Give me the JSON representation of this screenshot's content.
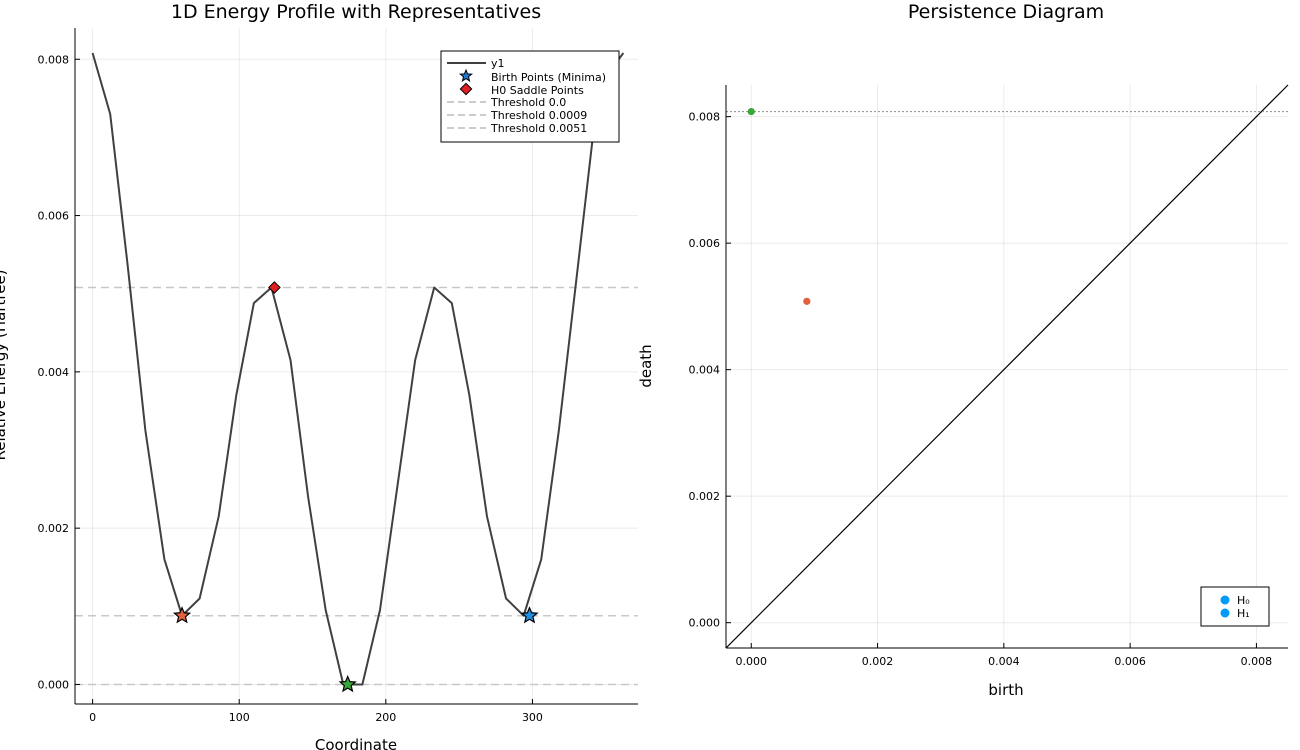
{
  "chart_data": [
    {
      "type": "line",
      "title": "1D Energy Profile with Representatives",
      "xlabel": "Coordinate",
      "ylabel": "Relative Energy (Hartree)",
      "xlim": [
        -12,
        372
      ],
      "ylim": [
        -0.00025,
        0.0084
      ],
      "xticks": [
        0,
        100,
        200,
        300
      ],
      "yticks": [
        0.0,
        0.002,
        0.004,
        0.006,
        0.008
      ],
      "ytick_labels": [
        "0.000",
        "0.002",
        "0.004",
        "0.006",
        "0.008"
      ],
      "grid": true,
      "legend_position": "top-right",
      "series": [
        {
          "name": "y1",
          "color": "#404040",
          "x": [
            0,
            12,
            24,
            36,
            49,
            61,
            73,
            86,
            98,
            110,
            122,
            135,
            147,
            159,
            171,
            184,
            196,
            208,
            220,
            233,
            245,
            257,
            269,
            282,
            294,
            306,
            318,
            331,
            343,
            355,
            362
          ],
          "y": [
            0.00808,
            0.0073,
            0.00535,
            0.00325,
            0.0016,
            0.00088,
            0.0011,
            0.00215,
            0.0037,
            0.00488,
            0.00508,
            0.00415,
            0.0024,
            0.00095,
            0.0,
            0.0,
            0.00095,
            0.00255,
            0.00415,
            0.00508,
            0.00488,
            0.0037,
            0.00215,
            0.0011,
            0.00088,
            0.0016,
            0.00325,
            0.00535,
            0.0073,
            0.0079,
            0.00808
          ]
        }
      ],
      "birth_points": {
        "name": "Birth Points (Minima)",
        "legend_color": "#1f78d1",
        "points": [
          {
            "x": 61,
            "y": 0.00088,
            "color": "#e0613f"
          },
          {
            "x": 174,
            "y": 0.0,
            "color": "#3aa63a"
          },
          {
            "x": 298,
            "y": 0.00088,
            "color": "#1f8fde"
          }
        ]
      },
      "saddle_points": {
        "name": "H0 Saddle Points",
        "color": "#e02020",
        "points": [
          {
            "x": 124,
            "y": 0.00508
          }
        ]
      },
      "thresholds": [
        {
          "name": "Threshold 0.0",
          "value": 0.0
        },
        {
          "name": "Threshold 0.0009",
          "value": 0.00088
        },
        {
          "name": "Threshold 0.0051",
          "value": 0.00508
        }
      ]
    },
    {
      "type": "scatter",
      "title": "Persistence Diagram",
      "xlabel": "birth",
      "ylabel": "death",
      "xlim": [
        -0.0004,
        0.0085
      ],
      "ylim": [
        -0.0004,
        0.0085
      ],
      "xticks": [
        0.0,
        0.002,
        0.004,
        0.006,
        0.008
      ],
      "xtick_labels": [
        "0.000",
        "0.002",
        "0.004",
        "0.006",
        "0.008"
      ],
      "yticks": [
        0.0,
        0.002,
        0.004,
        0.006,
        0.008
      ],
      "ytick_labels": [
        "0.000",
        "0.002",
        "0.004",
        "0.006",
        "0.008"
      ],
      "grid": true,
      "infinity_line": 0.00808,
      "legend_position": "bottom-right",
      "legend": [
        {
          "name": "H₀",
          "color": "#009af9"
        },
        {
          "name": "H₁",
          "color": "#009af9"
        }
      ],
      "points": [
        {
          "birth": 0.0,
          "death": 0.00808,
          "color": "#3aa63a"
        },
        {
          "birth": 0.00088,
          "death": 0.00508,
          "color": "#e0613f"
        }
      ]
    }
  ]
}
